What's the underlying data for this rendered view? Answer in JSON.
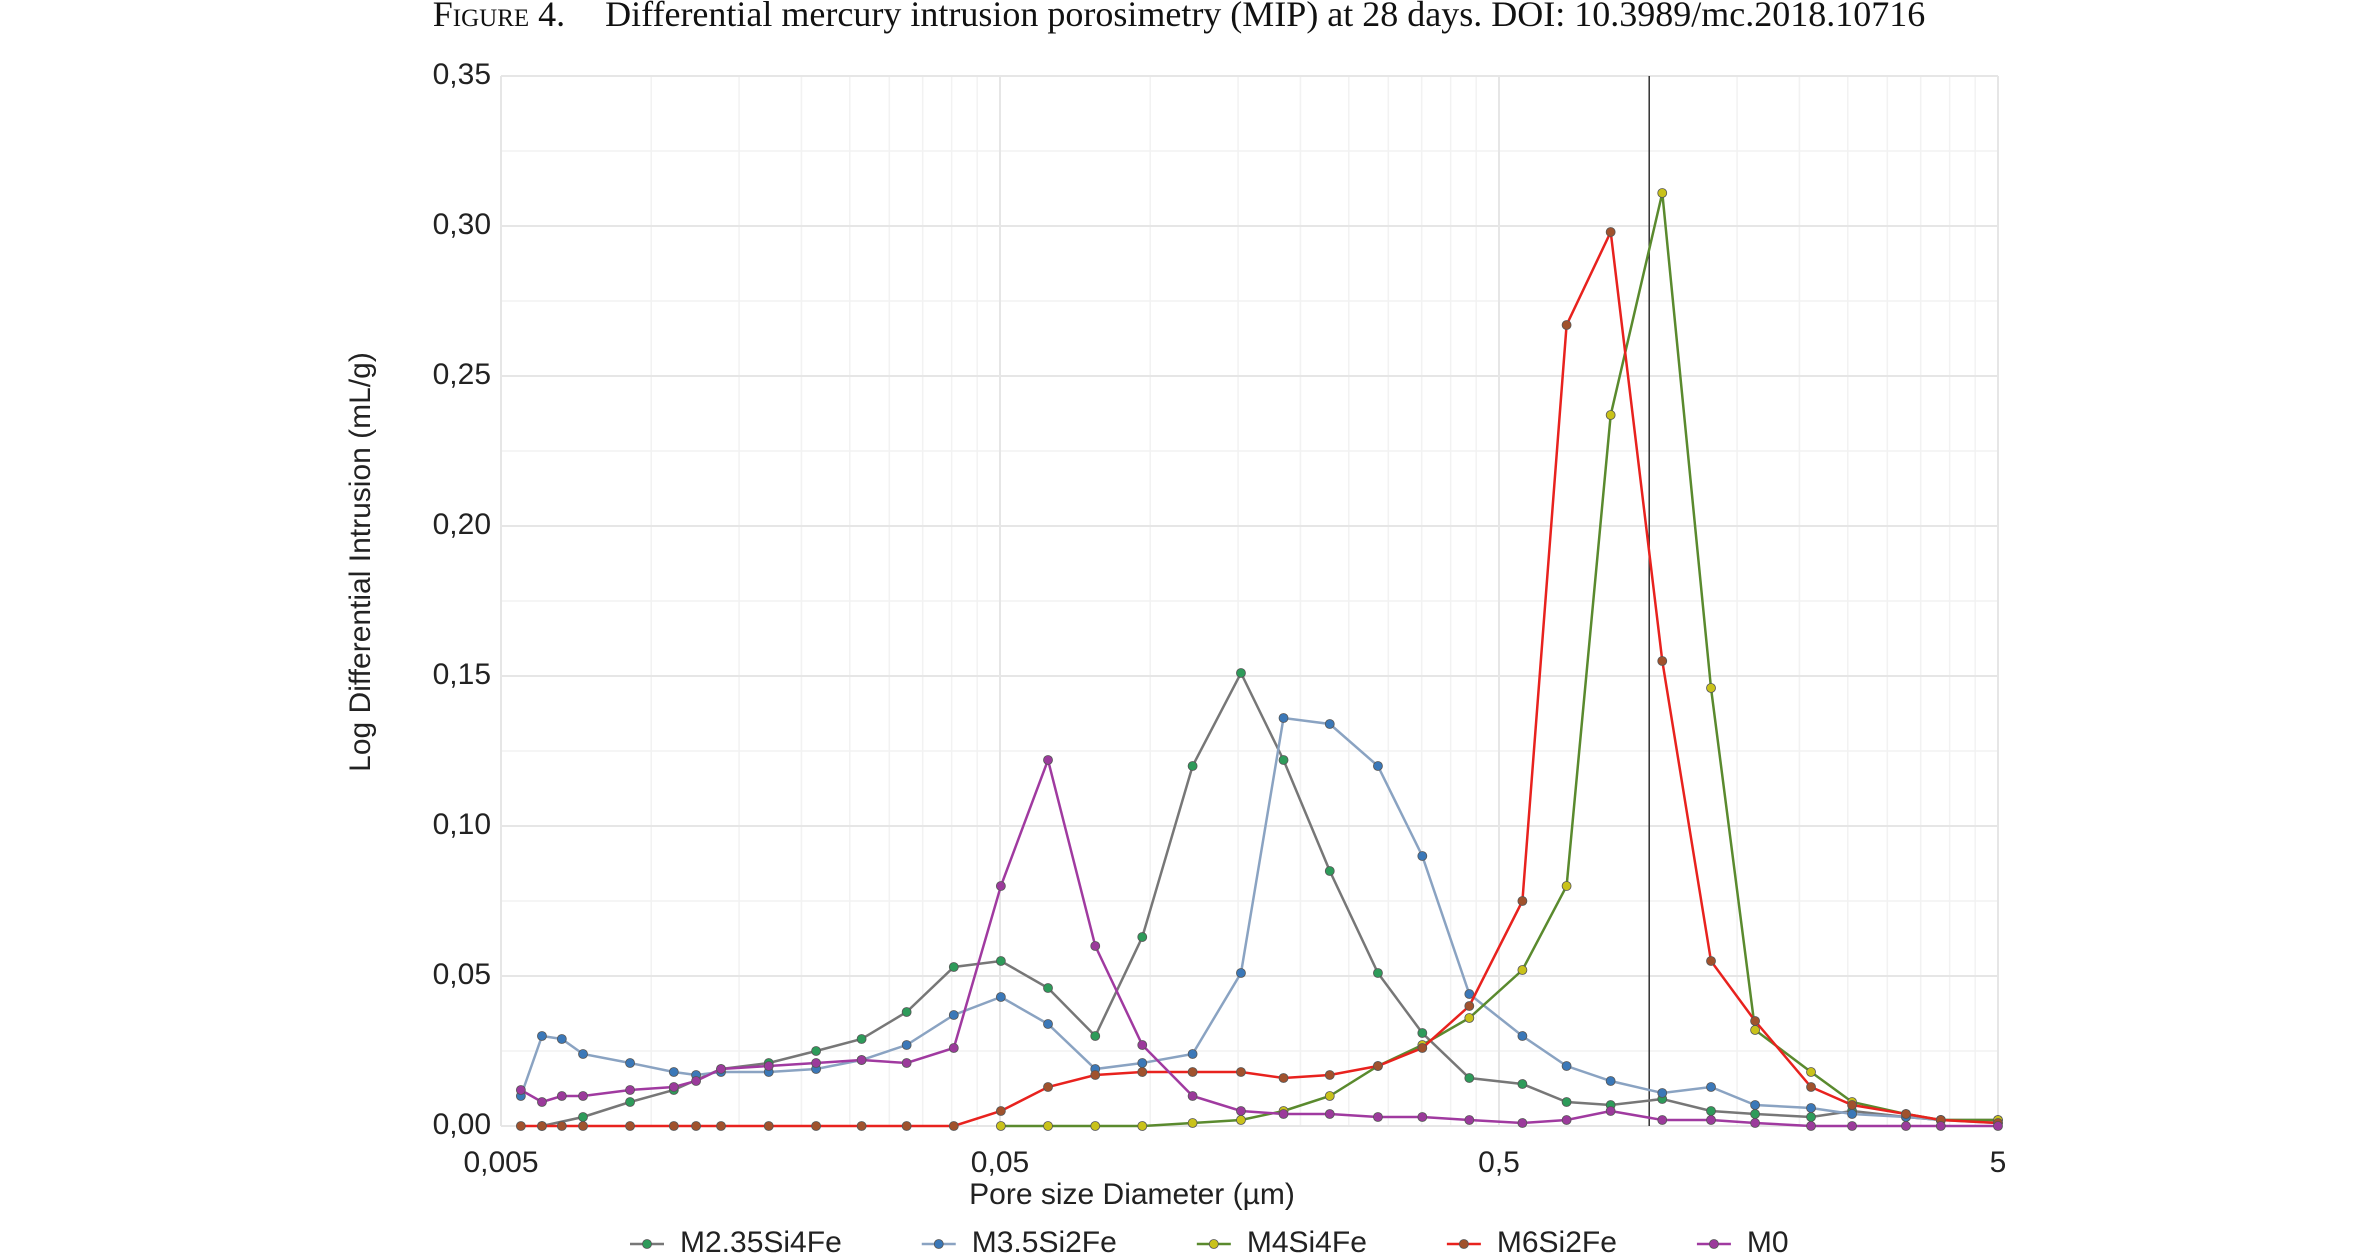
{
  "chart_data": {
    "type": "line",
    "figure_label": "Figure 4.",
    "title": "Differential mercury intrusion porosimetry (MIP) at 28 days. DOI: 10.3989/mc.2018.10716",
    "x_label": "Pore size Diameter (µm)",
    "y_label": "Log Differential Intrusion (mL/g)",
    "x_log": true,
    "xlim": [
      0.005,
      5
    ],
    "xticks": [
      {
        "value": 0.005,
        "label": "0,005"
      },
      {
        "value": 0.05,
        "label": "0,05"
      },
      {
        "value": 0.5,
        "label": "0,5"
      },
      5
    ],
    "ylim": [
      0,
      0.35
    ],
    "yticks": [
      {
        "value": 0,
        "label": "0,00"
      },
      {
        "value": 0.05,
        "label": "0,05"
      },
      {
        "value": 0.1,
        "label": "0,10"
      },
      {
        "value": 0.15,
        "label": "0,15"
      },
      {
        "value": 0.2,
        "label": "0,20"
      },
      {
        "value": 0.25,
        "label": "0,25"
      },
      {
        "value": 0.3,
        "label": "0,30"
      },
      {
        "value": 0.35,
        "label": "0,35"
      }
    ],
    "grid": true,
    "vline": 1,
    "legend": "bottom",
    "series": [
      {
        "name": "M2.35Si4Fe",
        "color": "#2e9b5a",
        "line_color": "#777777",
        "x": [
          0.00604,
          0.0073,
          0.00907,
          0.0111,
          0.0138,
          0.0172,
          0.0214,
          0.0264,
          0.0325,
          0.0404,
          0.0502,
          0.0624,
          0.0776,
          0.0964,
          0.1216,
          0.152,
          0.185,
          0.229,
          0.286,
          0.351,
          0.436,
          0.557,
          0.683,
          0.837,
          1.062,
          1.33,
          1.63,
          2.11,
          2.55,
          3.27,
          3.84,
          5
        ],
        "values": [
          0,
          0.003,
          0.008,
          0.012,
          0.019,
          0.021,
          0.025,
          0.029,
          0.038,
          0.053,
          0.055,
          0.046,
          0.03,
          0.063,
          0.12,
          0.151,
          0.122,
          0.085,
          0.051,
          0.031,
          0.016,
          0.014,
          0.008,
          0.007,
          0.009,
          0.005,
          0.004,
          0.003,
          0.005,
          0.003,
          0.002,
          0.002
        ]
      },
      {
        "name": "M3.5Si2Fe",
        "color": "#3b78b8",
        "line_color": "#8aa3c2",
        "x": [
          0.00548,
          0.00604,
          0.00662,
          0.0073,
          0.00907,
          0.0111,
          0.0123,
          0.0138,
          0.0172,
          0.0214,
          0.0264,
          0.0325,
          0.0404,
          0.0502,
          0.0624,
          0.0776,
          0.0964,
          0.1216,
          0.152,
          0.185,
          0.229,
          0.286,
          0.351,
          0.436,
          0.557,
          0.683,
          0.837,
          1.062,
          1.33,
          1.63,
          2.11,
          2.55,
          3.27,
          3.84,
          5
        ],
        "values": [
          0.01,
          0.03,
          0.029,
          0.024,
          0.021,
          0.018,
          0.017,
          0.018,
          0.018,
          0.019,
          0.022,
          0.027,
          0.037,
          0.043,
          0.034,
          0.019,
          0.021,
          0.024,
          0.051,
          0.136,
          0.134,
          0.12,
          0.09,
          0.044,
          0.03,
          0.02,
          0.015,
          0.011,
          0.013,
          0.007,
          0.006,
          0.004,
          0.003,
          0.002,
          0.001
        ]
      },
      {
        "name": "M4Si4Fe",
        "color": "#c9c21a",
        "line_color": "#5a8a2e",
        "x": [
          0.0502,
          0.0624,
          0.0776,
          0.0964,
          0.1216,
          0.152,
          0.185,
          0.229,
          0.286,
          0.351,
          0.436,
          0.557,
          0.683,
          0.837,
          1.062,
          1.33,
          1.63,
          2.11,
          2.55,
          3.27,
          3.84,
          5
        ],
        "values": [
          0,
          0,
          0,
          0,
          0.001,
          0.002,
          0.005,
          0.01,
          0.02,
          0.027,
          0.036,
          0.052,
          0.08,
          0.237,
          0.311,
          0.146,
          0.032,
          0.018,
          0.008,
          0.004,
          0.002,
          0.002
        ]
      },
      {
        "name": "M6Si2Fe",
        "color": "#a0522d",
        "line_color": "#e8221e",
        "x": [
          0.00548,
          0.00604,
          0.00662,
          0.0073,
          0.00907,
          0.0111,
          0.0123,
          0.0138,
          0.0172,
          0.0214,
          0.0264,
          0.0325,
          0.0404,
          0.0502,
          0.0624,
          0.0776,
          0.0964,
          0.1216,
          0.152,
          0.185,
          0.229,
          0.286,
          0.351,
          0.436,
          0.557,
          0.683,
          0.837,
          1.062,
          1.33,
          1.63,
          2.11,
          2.55,
          3.27,
          3.84,
          5
        ],
        "values": [
          0,
          0,
          0,
          0,
          0,
          0,
          0,
          0,
          0,
          0,
          0,
          0,
          0,
          0.005,
          0.013,
          0.017,
          0.018,
          0.018,
          0.018,
          0.016,
          0.017,
          0.02,
          0.026,
          0.04,
          0.075,
          0.267,
          0.298,
          0.155,
          0.055,
          0.035,
          0.013,
          0.007,
          0.004,
          0.002,
          0.001
        ]
      },
      {
        "name": "M0",
        "color": "#9b3a9b",
        "line_color": "#a03aa0",
        "x": [
          0.00548,
          0.00604,
          0.00662,
          0.0073,
          0.00907,
          0.0111,
          0.0123,
          0.0138,
          0.0172,
          0.0214,
          0.0264,
          0.0325,
          0.0404,
          0.0502,
          0.0624,
          0.0776,
          0.0964,
          0.1216,
          0.152,
          0.185,
          0.229,
          0.286,
          0.351,
          0.436,
          0.557,
          0.683,
          0.837,
          1.062,
          1.33,
          1.63,
          2.11,
          2.55,
          3.27,
          3.84,
          5
        ],
        "values": [
          0.012,
          0.008,
          0.01,
          0.01,
          0.012,
          0.013,
          0.015,
          0.019,
          0.02,
          0.021,
          0.022,
          0.021,
          0.026,
          0.08,
          0.122,
          0.06,
          0.027,
          0.01,
          0.005,
          0.004,
          0.004,
          0.003,
          0.003,
          0.002,
          0.001,
          0.002,
          0.005,
          0.002,
          0.002,
          0.001,
          0,
          0,
          0,
          0,
          0
        ]
      }
    ]
  }
}
